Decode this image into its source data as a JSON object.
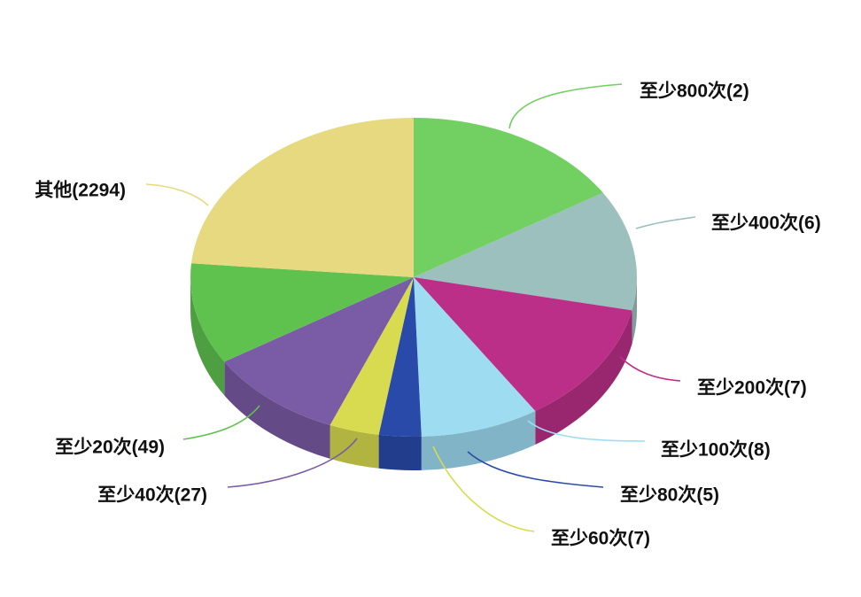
{
  "chart_data": {
    "type": "pie",
    "style": "3d",
    "slices": [
      {
        "label": "至少800次(2)",
        "value": 2,
        "color": "#72cf62"
      },
      {
        "label": "至少400次(6)",
        "value": 6,
        "color": "#9cc0bd"
      },
      {
        "label": "至少200次(7)",
        "value": 7,
        "color": "#bb2f89"
      },
      {
        "label": "至少100次(8)",
        "value": 8,
        "color": "#9ddcf1"
      },
      {
        "label": "至少80次(5)",
        "value": 5,
        "color": "#2a4aa9"
      },
      {
        "label": "至少60次(7)",
        "value": 7,
        "color": "#d8db4f"
      },
      {
        "label": "至少40次(27)",
        "value": 27,
        "color": "#7a5ba5"
      },
      {
        "label": "至少20次(49)",
        "value": 49,
        "color": "#5fc24f"
      },
      {
        "label": "其他(2294)",
        "value": 2294,
        "color": "#e7d97f"
      }
    ]
  }
}
